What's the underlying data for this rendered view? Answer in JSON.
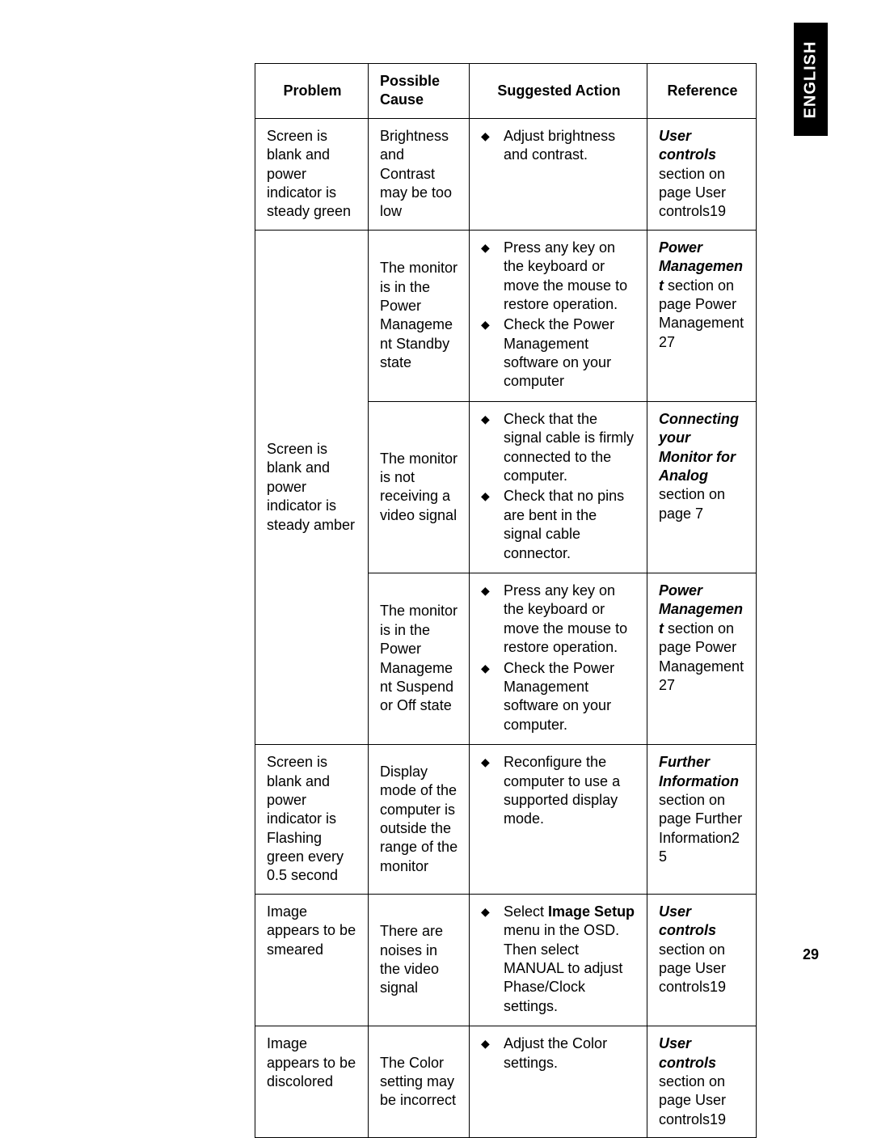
{
  "sideTab": "ENGLISH",
  "pageNumber": "29",
  "table": {
    "columns": [
      "Problem",
      "Possible Cause",
      "Suggested Action",
      "Reference"
    ],
    "columnWidthsPx": [
      140,
      125,
      220,
      135
    ],
    "borderColor": "#000000",
    "background": "#ffffff",
    "fontSizePt": 14,
    "rows": [
      {
        "problem": "Screen is blank and power indicator is steady green",
        "cause": "Brightness and Contrast may be too low",
        "actions": [
          "Adjust brightness and contrast."
        ],
        "reference": {
          "title": "User controls",
          "rest": " section on page User controls19"
        }
      },
      {
        "problem": "Screen is blank and power indicator is steady amber",
        "problemRowspan": 3,
        "cause": "The monitor is in the Power Management Standby state",
        "actions": [
          "Press any key on the keyboard or move the mouse to restore operation.",
          "Check the Power Management software on your computer"
        ],
        "reference": {
          "title": "Power Management",
          "rest": " section on page Power Management27"
        }
      },
      {
        "cause": "The monitor is not receiving a video signal",
        "actions": [
          "Check that the signal cable is firmly connected to the computer.",
          "Check that no pins are bent in the signal cable connector."
        ],
        "reference": {
          "title": "Connecting your Monitor for Analog",
          "rest": " section on page 7"
        }
      },
      {
        "cause": "The monitor is in the Power Management Suspend or Off state",
        "actions": [
          "Press any key on the keyboard or move the mouse to restore operation.",
          "Check the Power Management software on your computer."
        ],
        "reference": {
          "title": "Power Management",
          "rest": " section on page Power Management27"
        }
      },
      {
        "problem": "Screen is blank and power indicator is Flashing green every 0.5 second",
        "cause": "Display mode of the computer is outside the range of the monitor",
        "actions": [
          "Reconfigure the computer to use a supported display mode."
        ],
        "reference": {
          "title": "Further Information",
          "rest": " section on page Further Information25"
        }
      },
      {
        "problem": "Image appears to be smeared",
        "cause": "There are noises in the video signal",
        "actionsRich": [
          [
            {
              "text": "Select "
            },
            {
              "text": "Image Setup",
              "bold": true
            },
            {
              "text": " menu in the OSD. Then select MANUAL to adjust Phase/Clock settings."
            }
          ]
        ],
        "reference": {
          "title": "User controls",
          "rest": " section on page User controls19"
        }
      },
      {
        "problem": "Image appears to be discolored",
        "cause": "The Color setting may be incorrect",
        "actions": [
          "Adjust the Color settings."
        ],
        "reference": {
          "title": "User controls",
          "rest": " section on page User controls19"
        }
      }
    ]
  }
}
